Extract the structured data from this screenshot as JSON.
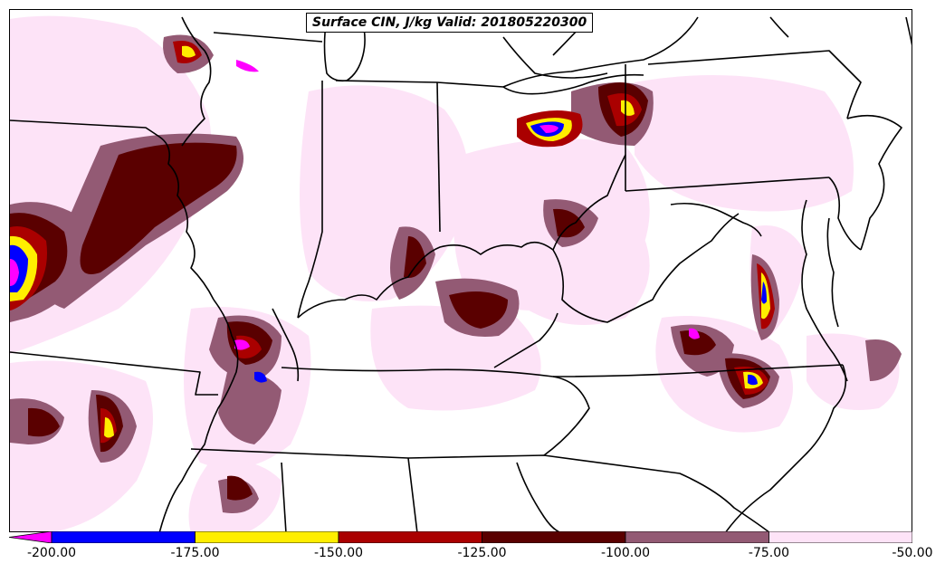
{
  "title": "Surface CIN, J/kg Valid: 201805220300",
  "colorbar": {
    "labels": [
      "-200.00",
      "-175.00",
      "-150.00",
      "-125.00",
      "-100.00",
      "-75.00",
      "-50.00"
    ],
    "bins": [
      {
        "color": "#0000ff"
      },
      {
        "color": "#ffee00"
      },
      {
        "color": "#aa0000"
      },
      {
        "color": "#5a0000"
      },
      {
        "color": "#935a74"
      },
      {
        "color": "#fde3f7"
      }
    ],
    "underflow_color": "#ff00ff"
  },
  "colors": {
    "magenta": "#ff00ff",
    "blue": "#0000ff",
    "yellow": "#ffee00",
    "red": "#aa0000",
    "darkred": "#5a0000",
    "mauve": "#935a74",
    "pink": "#fde3f7",
    "borders": "#000000"
  }
}
